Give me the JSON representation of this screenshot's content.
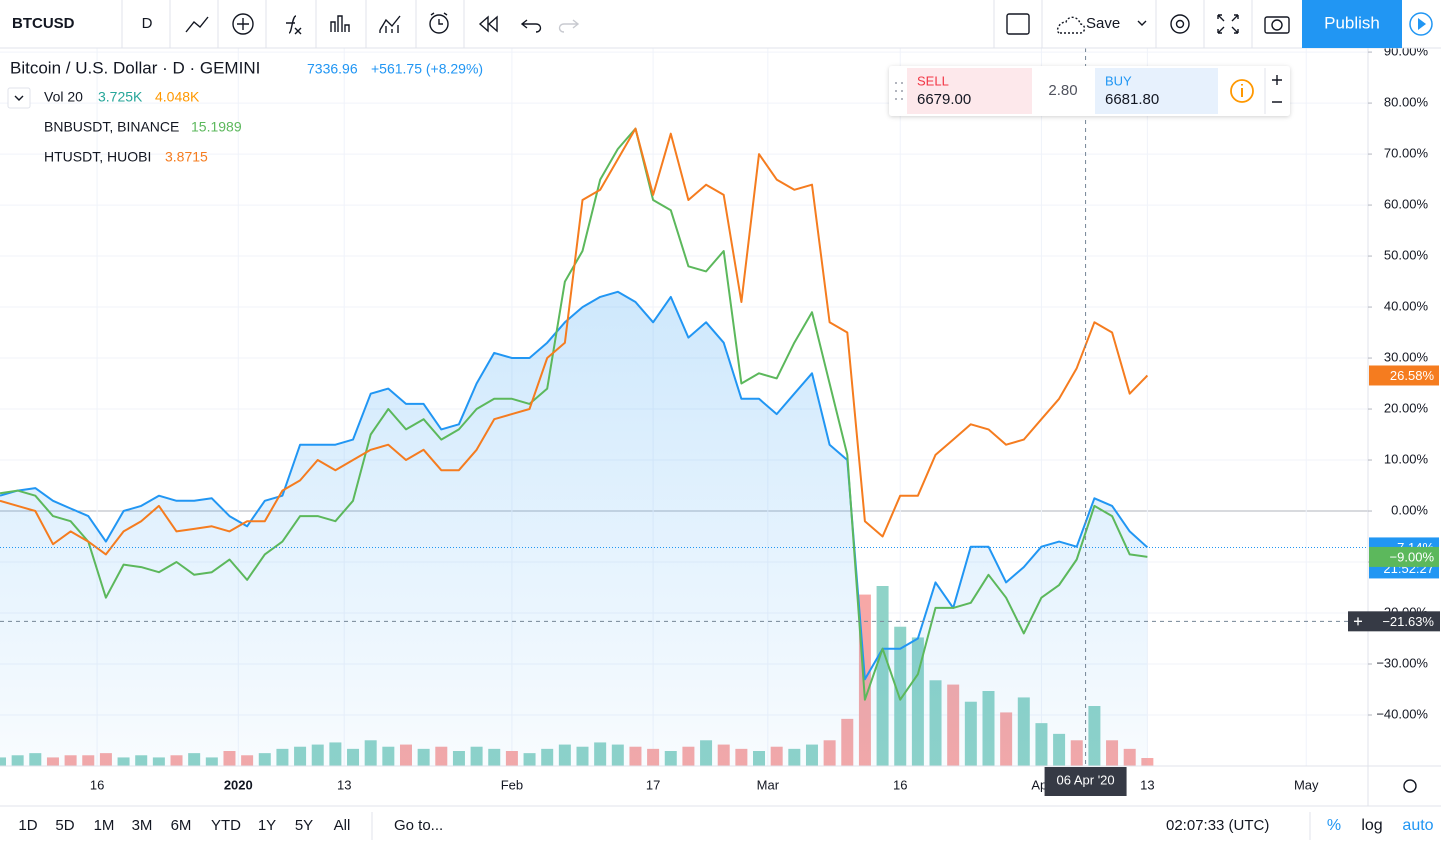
{
  "toolbar": {
    "symbol": "BTCUSD",
    "interval": "D",
    "save": "Save",
    "publish": "Publish"
  },
  "legend": {
    "main": "Bitcoin / U.S. Dollar · D · GEMINI",
    "price": "7336.96",
    "change": "+561.75 (+8.29%)",
    "volume": "Vol 20",
    "volume_last": "3.725K",
    "volume_ma": "4.048K",
    "compare": [
      {
        "name": "BNBUSDT, BINANCE",
        "price": "15.1989"
      },
      {
        "name": "HTUSDT, HUOBI",
        "price": "3.8715"
      }
    ]
  },
  "trade": {
    "sell": "SELL",
    "sell_price": "6679.00",
    "spread": "2.80",
    "buy": "BUY",
    "buy_price": "6681.80"
  },
  "chart_data": {
    "type": "line",
    "x": [
      0,
      2,
      4,
      6,
      8,
      10,
      12,
      14,
      16,
      18,
      20,
      22,
      24,
      26,
      28,
      30,
      32,
      34,
      36,
      38,
      40,
      42,
      44,
      46,
      48,
      50,
      52,
      54,
      56,
      58,
      60,
      62,
      64,
      66,
      68,
      70,
      72,
      74,
      76,
      78,
      80,
      82,
      84,
      86,
      88,
      90,
      92,
      94,
      96,
      98,
      100,
      102,
      104,
      106,
      108,
      110,
      112,
      114,
      116,
      118,
      120,
      122,
      124,
      126,
      128,
      130
    ],
    "series": [
      {
        "name": "BTCUSD",
        "color": "#2196f3",
        "area": true,
        "values": [
          3,
          4,
          4.5,
          2,
          0.5,
          -1,
          -6,
          0,
          1,
          3,
          2,
          2,
          2.5,
          -1,
          -3,
          2,
          3,
          13,
          13,
          13,
          14,
          23,
          24,
          21,
          21,
          16,
          17,
          25,
          31,
          30,
          30,
          33,
          37,
          40,
          42,
          43,
          41,
          37,
          42,
          34,
          37,
          33,
          22,
          22,
          19,
          23,
          27,
          13,
          10,
          -33,
          -27,
          -27,
          -25,
          -14,
          -19,
          -7,
          -7,
          -14,
          -11,
          -7,
          -6,
          -7,
          2.5,
          1,
          -4,
          -7.14
        ],
        "value_labels": [
          null,
          null,
          null,
          null,
          null,
          null,
          null,
          null,
          null,
          null,
          null,
          null,
          null,
          null,
          null,
          null,
          null,
          null,
          null,
          null,
          null,
          null,
          null,
          null,
          null,
          null,
          null,
          null,
          null,
          null,
          null,
          null,
          null,
          null,
          null,
          null,
          null,
          null,
          null,
          null,
          null,
          null,
          null,
          null,
          null,
          null,
          null,
          null,
          null,
          null,
          null,
          null,
          null,
          null,
          null,
          null,
          null,
          null,
          null,
          null,
          null,
          null,
          null,
          null,
          null,
          "−7.14%"
        ]
      },
      {
        "name": "BNBUSDT",
        "color": "#5cb85c",
        "values": [
          3.5,
          4,
          3,
          -1,
          -2,
          -6,
          -17,
          -10.5,
          -11,
          -12,
          -10,
          -12.5,
          -12,
          -9.5,
          -13.5,
          -8.5,
          -6,
          -1,
          -1,
          -2,
          2,
          15,
          20,
          16,
          18,
          14,
          16,
          20,
          22,
          22,
          21,
          24,
          45,
          51,
          65,
          71,
          75,
          61,
          59,
          48,
          47,
          51,
          25,
          27,
          26,
          33,
          39,
          25,
          11,
          -37,
          -27,
          -37,
          -32,
          -19,
          -19,
          -18,
          -12.5,
          -17,
          -24,
          -17,
          -14.5,
          -9.5,
          1,
          -1,
          -8.5,
          -9
        ],
        "value_labels": [
          null,
          null,
          null,
          null,
          null,
          null,
          null,
          null,
          null,
          null,
          null,
          null,
          null,
          null,
          null,
          null,
          null,
          null,
          null,
          null,
          null,
          null,
          null,
          null,
          null,
          null,
          null,
          null,
          null,
          null,
          null,
          null,
          null,
          null,
          null,
          null,
          null,
          null,
          null,
          null,
          null,
          null,
          null,
          null,
          null,
          null,
          null,
          null,
          null,
          null,
          null,
          null,
          null,
          null,
          null,
          null,
          null,
          null,
          null,
          null,
          null,
          null,
          null,
          null,
          null,
          "−9.00%"
        ]
      },
      {
        "name": "HTUSDT",
        "color": "#f57c1f",
        "values": [
          2,
          1,
          0,
          -6.5,
          -4,
          -6,
          -8.5,
          -4,
          -2,
          1,
          -4,
          -3.5,
          -3,
          -4,
          -2,
          -2,
          4,
          6,
          10,
          8,
          10,
          12,
          13,
          10,
          12,
          8,
          8,
          12,
          18,
          19,
          20,
          30,
          33,
          61,
          63,
          69,
          75,
          62,
          74,
          61,
          64,
          62,
          41,
          70,
          65,
          63,
          64,
          37,
          35,
          -2,
          -5,
          3,
          3,
          11,
          14,
          17,
          16,
          13,
          14,
          18,
          22,
          28,
          37,
          35,
          23,
          26.58
        ],
        "value_labels": [
          null,
          null,
          null,
          null,
          null,
          null,
          null,
          null,
          null,
          null,
          null,
          null,
          null,
          null,
          null,
          null,
          null,
          null,
          null,
          null,
          null,
          null,
          null,
          null,
          null,
          null,
          null,
          null,
          null,
          null,
          null,
          null,
          null,
          null,
          null,
          null,
          null,
          null,
          null,
          null,
          null,
          null,
          null,
          null,
          null,
          null,
          null,
          null,
          null,
          null,
          null,
          null,
          null,
          null,
          null,
          null,
          null,
          null,
          null,
          null,
          null,
          null,
          null,
          null,
          null,
          "26.58%"
        ]
      }
    ],
    "volume": {
      "up_color": "#8fd3c8",
      "down_color": "#f7a8a7",
      "values": [
        4,
        5,
        6,
        4,
        5,
        5,
        6,
        4,
        5,
        4,
        5,
        6,
        4,
        7,
        5,
        6,
        8,
        9,
        10,
        11,
        8,
        12,
        9,
        10,
        8,
        9,
        7,
        9,
        8,
        7,
        6,
        8,
        10,
        9,
        11,
        10,
        9,
        8,
        7,
        9,
        12,
        10,
        8,
        7,
        9,
        8,
        10,
        12,
        22,
        80,
        84,
        65,
        60,
        40,
        38,
        30,
        35,
        25,
        32,
        20,
        15,
        12,
        28,
        12,
        8,
        3.725
      ]
    },
    "xlim": [
      0,
      155
    ],
    "xticks": [
      {
        "value": 11,
        "label": "16"
      },
      {
        "value": 27,
        "label": "2020"
      },
      {
        "value": 39,
        "label": "13"
      },
      {
        "value": 58,
        "label": "Feb"
      },
      {
        "value": 74,
        "label": "17"
      },
      {
        "value": 87,
        "label": "Mar"
      },
      {
        "value": 102,
        "label": "16"
      },
      {
        "value": 118,
        "label": "Apr"
      },
      {
        "value": 130,
        "label": "13"
      },
      {
        "value": 148,
        "label": "May"
      }
    ],
    "ylim": [
      -50,
      90.8
    ],
    "yticks": [
      {
        "value": -40,
        "label": "−40.00%"
      },
      {
        "value": -30,
        "label": "−30.00%"
      },
      {
        "value": -20,
        "label": "−20.00%"
      },
      {
        "value": -10,
        "label": "−10.00%"
      },
      {
        "value": 0,
        "label": "0.00%"
      },
      {
        "value": 10,
        "label": "10.00%"
      },
      {
        "value": 20,
        "label": "20.00%"
      },
      {
        "value": 30,
        "label": "30.00%"
      },
      {
        "value": 40,
        "label": "40.00%"
      },
      {
        "value": 50,
        "label": "50.00%"
      },
      {
        "value": 60,
        "label": "60.00%"
      },
      {
        "value": 70,
        "label": "70.00%"
      },
      {
        "value": 80,
        "label": "80.00%"
      },
      {
        "value": 90,
        "label": "90.00%"
      }
    ],
    "grid": true,
    "countdown": "21:52:27",
    "crosshair": {
      "x": 123,
      "x_label": "06 Apr '20",
      "y": -21.63,
      "y_label": "−21.63%"
    }
  },
  "bottom_bar": {
    "ranges": [
      "1D",
      "5D",
      "1M",
      "3M",
      "6M",
      "YTD",
      "1Y",
      "5Y",
      "All"
    ],
    "goto": "Go to...",
    "clock": "02:07:33 (UTC)",
    "percent": "%",
    "log": "log",
    "auto": "auto"
  }
}
